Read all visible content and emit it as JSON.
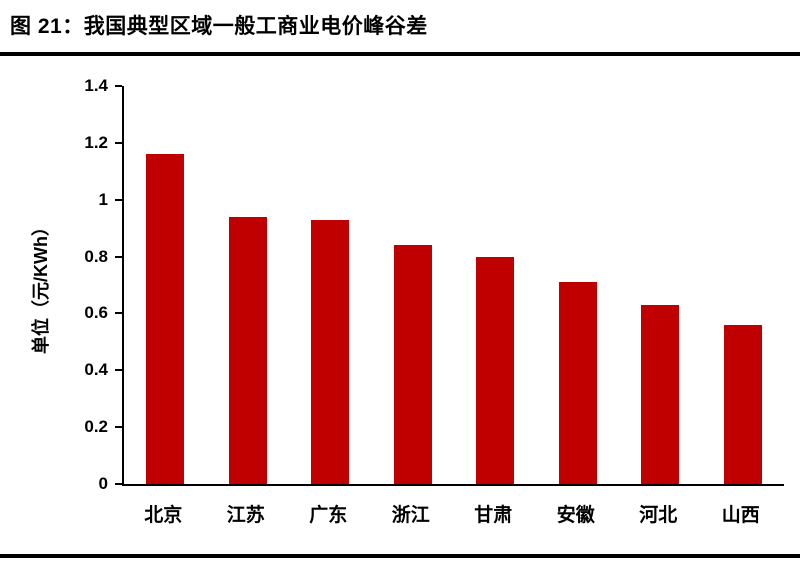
{
  "title": "图 21：我国典型区域一般工商业电价峰谷差",
  "chart_data": {
    "type": "bar",
    "title": "图 21：我国典型区域一般工商业电价峰谷差",
    "categories": [
      "北京",
      "江苏",
      "广东",
      "浙江",
      "甘肃",
      "安徽",
      "河北",
      "山西"
    ],
    "values": [
      1.16,
      0.94,
      0.93,
      0.84,
      0.8,
      0.71,
      0.63,
      0.56
    ],
    "xlabel": "",
    "ylabel": "单位（元/KWh）",
    "ylim": [
      0,
      1.4
    ],
    "ytick_labels": [
      "0",
      "0.2",
      "0.4",
      "0.6",
      "0.8",
      "1",
      "1.2",
      "1.4"
    ],
    "bar_color": "#C00000",
    "axis_color": "#000000",
    "grid": false,
    "legend": "none"
  }
}
